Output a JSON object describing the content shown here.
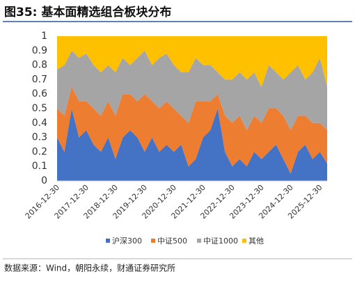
{
  "chart_data": {
    "type": "stacked_area",
    "title": "图35: 基本面精选组合板块分布",
    "source": "数据来源：Wind，朝阳永续，财通证券研究所",
    "categories": [
      "2016-12-30",
      null,
      null,
      null,
      "2017-12-30",
      null,
      null,
      null,
      "2018-12-30",
      null,
      null,
      null,
      "2019-12-30",
      null,
      null,
      null,
      "2020-12-30",
      null,
      null,
      null,
      "2021-12-30",
      null,
      null,
      null,
      "2022-12-30",
      null,
      null,
      null,
      "2023-12-30",
      null,
      null,
      null,
      "2024-12-30",
      null,
      null,
      null,
      "2025-12-30",
      null
    ],
    "ylim": [
      0,
      1
    ],
    "yticks": [
      0,
      0.1,
      0.2,
      0.3,
      0.4,
      0.5,
      0.6,
      0.7,
      0.8,
      0.9,
      1
    ],
    "grid": false,
    "series": [
      {
        "name": "沪深300",
        "color": "#4472c4",
        "values": [
          0.3,
          0.2,
          0.5,
          0.3,
          0.35,
          0.25,
          0.2,
          0.3,
          0.15,
          0.3,
          0.35,
          0.3,
          0.2,
          0.3,
          0.2,
          0.25,
          0.2,
          0.25,
          0.1,
          0.15,
          0.3,
          0.35,
          0.5,
          0.2,
          0.1,
          0.15,
          0.1,
          0.2,
          0.15,
          0.2,
          0.25,
          0.15,
          0.05,
          0.2,
          0.25,
          0.15,
          0.2,
          0.12
        ]
      },
      {
        "name": "中证500",
        "color": "#ed7d31",
        "values": [
          0.2,
          0.25,
          0.15,
          0.25,
          0.2,
          0.25,
          0.25,
          0.25,
          0.3,
          0.3,
          0.25,
          0.25,
          0.4,
          0.25,
          0.3,
          0.3,
          0.3,
          0.2,
          0.3,
          0.4,
          0.25,
          0.2,
          0.1,
          0.25,
          0.3,
          0.3,
          0.25,
          0.25,
          0.25,
          0.3,
          0.25,
          0.3,
          0.3,
          0.25,
          0.2,
          0.25,
          0.2,
          0.23
        ]
      },
      {
        "name": "中证1000",
        "color": "#a5a5a5",
        "values": [
          0.27,
          0.35,
          0.25,
          0.3,
          0.33,
          0.3,
          0.3,
          0.25,
          0.3,
          0.25,
          0.2,
          0.3,
          0.3,
          0.25,
          0.35,
          0.33,
          0.3,
          0.3,
          0.35,
          0.3,
          0.25,
          0.25,
          0.15,
          0.25,
          0.3,
          0.3,
          0.35,
          0.3,
          0.25,
          0.3,
          0.25,
          0.25,
          0.4,
          0.35,
          0.25,
          0.35,
          0.45,
          0.3
        ]
      },
      {
        "name": "其他",
        "color": "#ffc000",
        "values": [
          0.23,
          0.2,
          0.1,
          0.15,
          0.12,
          0.2,
          0.25,
          0.2,
          0.25,
          0.15,
          0.2,
          0.15,
          0.1,
          0.2,
          0.15,
          0.12,
          0.2,
          0.25,
          0.25,
          0.15,
          0.2,
          0.2,
          0.25,
          0.3,
          0.3,
          0.25,
          0.3,
          0.25,
          0.35,
          0.2,
          0.25,
          0.3,
          0.25,
          0.2,
          0.3,
          0.25,
          0.15,
          0.35
        ]
      }
    ]
  }
}
